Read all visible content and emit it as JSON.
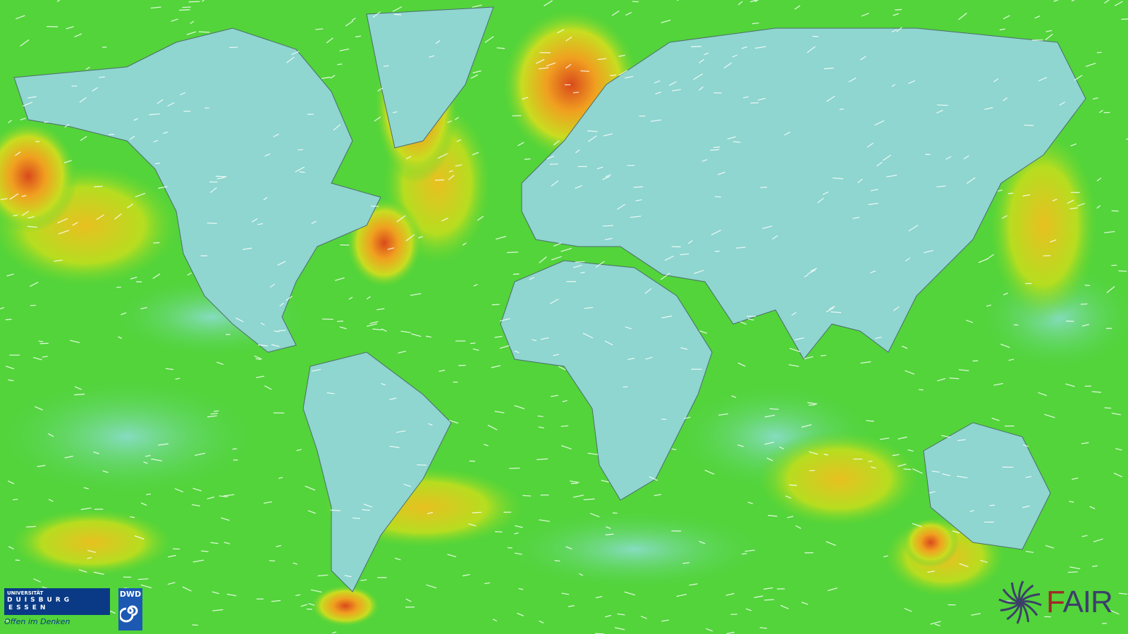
{
  "map": {
    "layer": "wind speed with wind direction streaks",
    "colors": {
      "ocean_low": "#52d43a",
      "land": "#8ed6cf",
      "calm": "#7fdcb0",
      "moderate": "#b6dd20",
      "strong": "#f0b020",
      "extreme": "#d94a1c",
      "streak": "#ffffff",
      "borders": "#4f6b6b"
    }
  },
  "logos": {
    "ude": {
      "line1": "UNIVERSITÄT",
      "line2": "DUISBURG",
      "line3": "ESSEN",
      "slogan": "Offen im Denken"
    },
    "dwd": {
      "label": "DWD"
    },
    "fair": {
      "label_f": "F",
      "label_rest": "AIR"
    }
  }
}
